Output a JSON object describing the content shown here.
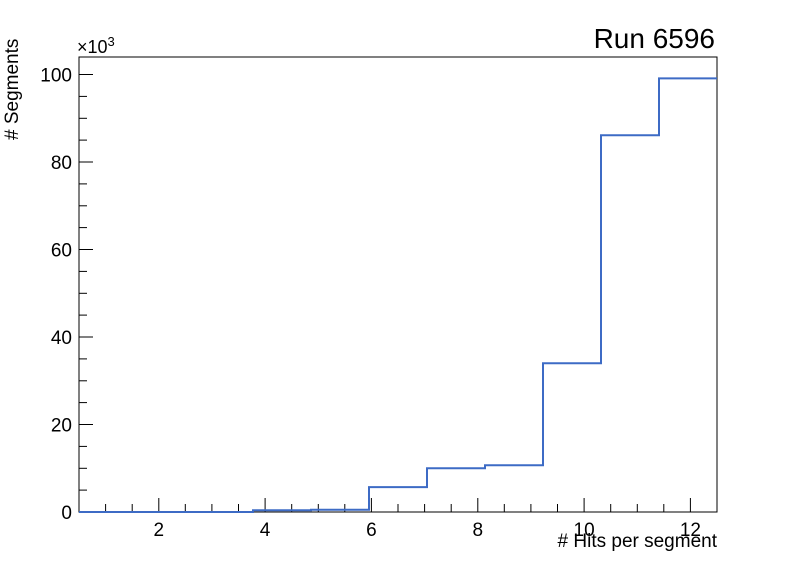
{
  "chart_data": {
    "type": "step-histogram",
    "title": "Run 6596",
    "xlabel": "# Hits per segment",
    "ylabel": "# Segments",
    "y_scale_label": {
      "base": "×10",
      "exponent": "3"
    },
    "xlim": [
      0.5,
      12.5
    ],
    "ylim": [
      0,
      104000
    ],
    "x_ticks": [
      {
        "value": 2,
        "label": "2"
      },
      {
        "value": 4,
        "label": "4"
      },
      {
        "value": 6,
        "label": "6"
      },
      {
        "value": 8,
        "label": "8"
      },
      {
        "value": 10,
        "label": "10"
      },
      {
        "value": 12,
        "label": "12"
      }
    ],
    "x_minor_tick_step": 0.5,
    "y_ticks": [
      {
        "value": 0,
        "label": "0"
      },
      {
        "value": 20000,
        "label": "20"
      },
      {
        "value": 40000,
        "label": "40"
      },
      {
        "value": 60000,
        "label": "60"
      },
      {
        "value": 80000,
        "label": "80"
      },
      {
        "value": 100000,
        "label": "100"
      }
    ],
    "y_minor_tick_step": 5000,
    "bin_edges": [
      0.5,
      1.591,
      2.682,
      3.773,
      4.864,
      5.955,
      7.045,
      8.136,
      9.227,
      10.318,
      11.409,
      12.5
    ],
    "values": [
      0,
      0,
      0,
      400,
      500,
      5700,
      10000,
      10700,
      34000,
      86100,
      99100
    ],
    "line_color": "#3d6bc5",
    "axis_color": "#000000",
    "background_color": "#ffffff",
    "grid": false,
    "legend": null
  }
}
